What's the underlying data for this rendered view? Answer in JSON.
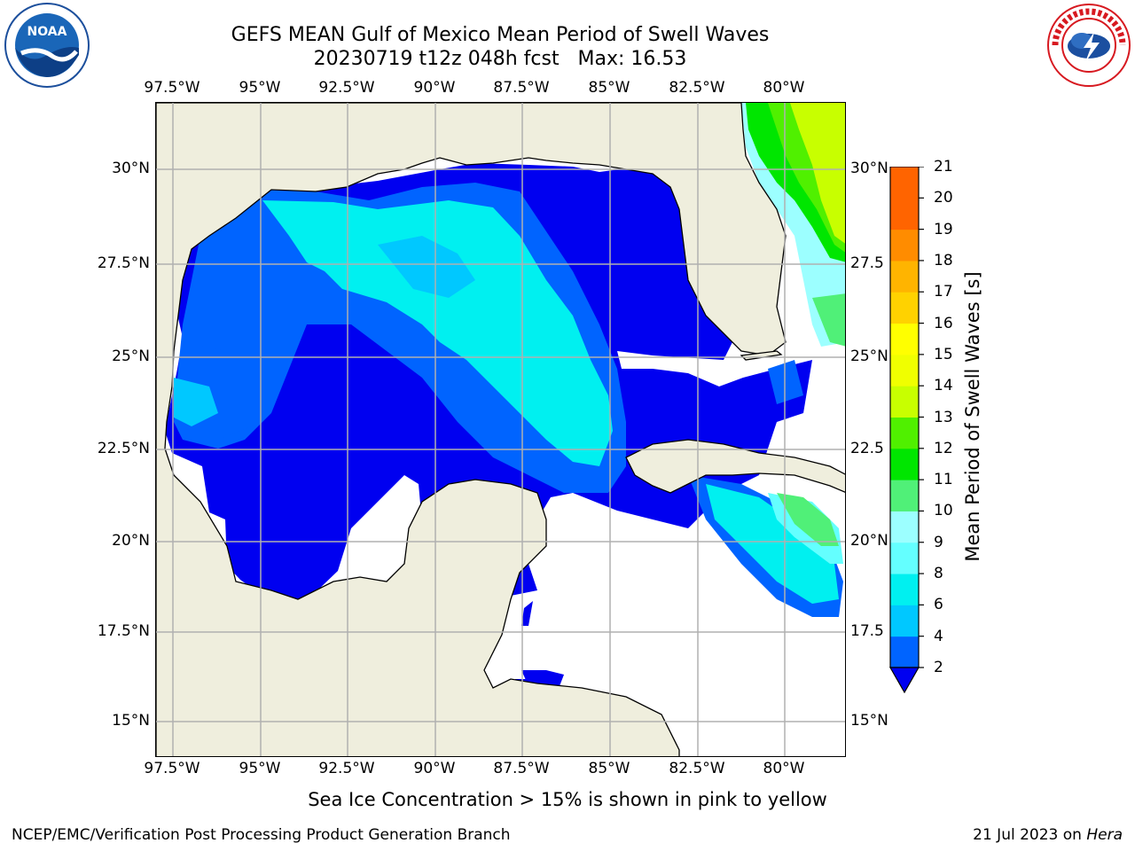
{
  "header": {
    "title_line1": "GEFS MEAN Gulf of Mexico Mean Period of Swell Waves",
    "title_line2": "20230719 t12z 048h fcst   Max: 16.53"
  },
  "logos": {
    "left": "noaa-logo",
    "left_text": "NOAA",
    "right": "nws-logo",
    "right_text": "NATIONAL WEATHER SERVICE"
  },
  "map": {
    "lon_labels_top": [
      "97.5°W",
      "95°W",
      "92.5°W",
      "90°W",
      "87.5°W",
      "85°W",
      "82.5°W",
      "80°W"
    ],
    "lon_labels_bottom": [
      "97.5°W",
      "95°W",
      "92.5°W",
      "90°W",
      "87.5°W",
      "85°W",
      "82.5°W",
      "80°W"
    ],
    "lat_labels_left": [
      "30°N",
      "27.5°N",
      "25°N",
      "22.5°N",
      "20°N",
      "17.5°N",
      "15°N"
    ],
    "lat_labels_right": [
      "30°N",
      "27.5",
      "25°N",
      "22.5",
      "20°N",
      "17.5",
      "15°N"
    ],
    "land_color": "#efeedd",
    "grid_color": "#b0b0b0"
  },
  "colorbar": {
    "label": "Mean Period of Swell Waves [s]",
    "ticks": [
      "21",
      "20",
      "19",
      "18",
      "17",
      "16",
      "15",
      "14",
      "13",
      "12",
      "11",
      "10",
      "9",
      "8",
      "6",
      "4",
      "2"
    ],
    "colors": [
      "#0000f0",
      "#0064ff",
      "#00c8ff",
      "#00f0f0",
      "#64ffff",
      "#9cffff",
      "#50f078",
      "#00e600",
      "#50f000",
      "#c8ff00",
      "#f0ff00",
      "#ffff00",
      "#ffd200",
      "#ffb400",
      "#ff8c00",
      "#ff6400",
      "#ff3200",
      "#ff0000"
    ],
    "extend": "min"
  },
  "subtitle": "Sea Ice Concentration > 15% is shown in pink to yellow",
  "footer": {
    "left": "NCEP/EMC/Verification Post Processing Product Generation Branch",
    "right_prefix": "21 Jul 2023 on ",
    "right_host": "Hera"
  }
}
